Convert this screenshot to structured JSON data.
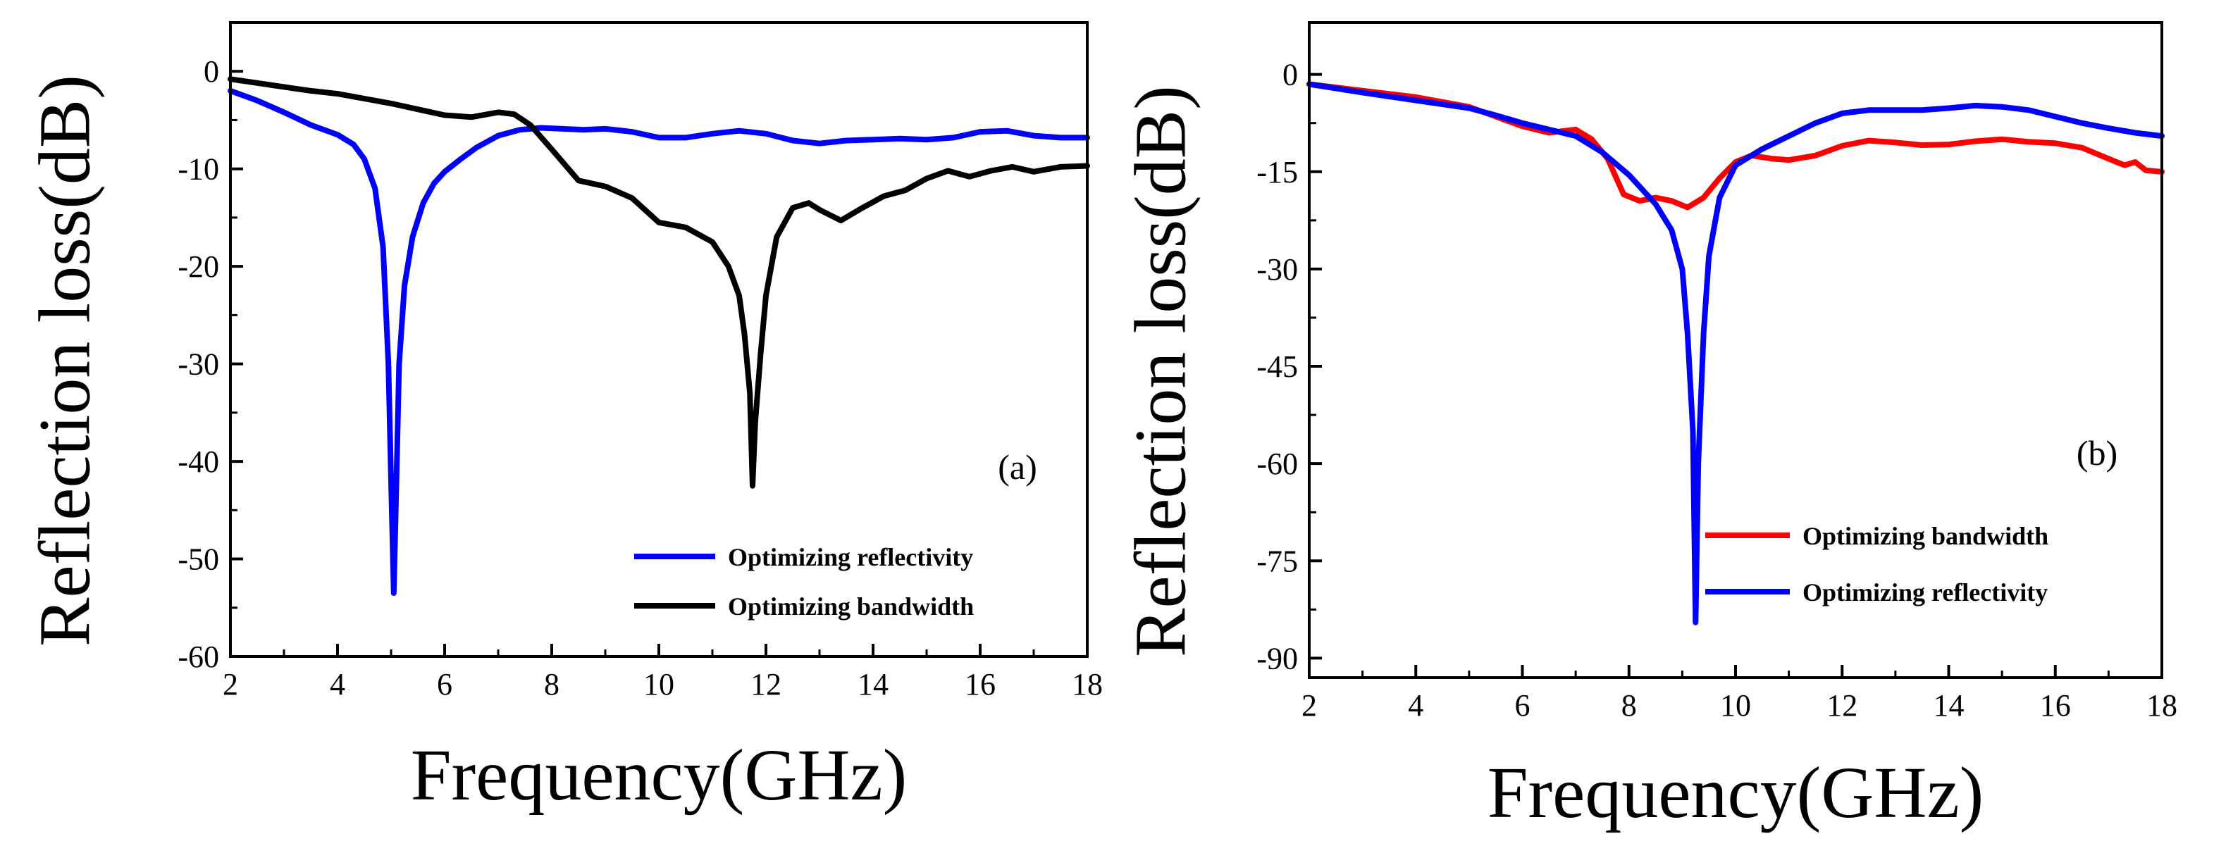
{
  "chart_data": [
    {
      "panel_label": "(a)",
      "type": "line",
      "xlabel": "Frequency(GHz)",
      "ylabel": "Reflection loss(dB)",
      "xlim": [
        2,
        18
      ],
      "ylim": [
        -60,
        5
      ],
      "xticks": [
        2,
        4,
        6,
        8,
        10,
        12,
        14,
        16,
        18
      ],
      "xtick_labels": [
        "2",
        "4",
        "6",
        "8",
        "10",
        "12",
        "14",
        "16",
        "18"
      ],
      "yticks": [
        0,
        -10,
        -20,
        -30,
        -40,
        -50,
        -60
      ],
      "ytick_labels": [
        "0",
        "-10",
        "-20",
        "-30",
        "-40",
        "-50",
        "-60"
      ],
      "legend_position": "bottom-right",
      "series": [
        {
          "name": "Optimizing reflectivity",
          "color": "#0000ff",
          "points": [
            [
              2,
              -2
            ],
            [
              2.5,
              -3
            ],
            [
              3,
              -4.2
            ],
            [
              3.5,
              -5.5
            ],
            [
              4,
              -6.5
            ],
            [
              4.3,
              -7.5
            ],
            [
              4.5,
              -9
            ],
            [
              4.7,
              -12
            ],
            [
              4.85,
              -18
            ],
            [
              4.95,
              -30
            ],
            [
              5.0,
              -42
            ],
            [
              5.05,
              -53.5
            ],
            [
              5.1,
              -42
            ],
            [
              5.15,
              -30
            ],
            [
              5.25,
              -22
            ],
            [
              5.4,
              -17
            ],
            [
              5.6,
              -13.5
            ],
            [
              5.8,
              -11.5
            ],
            [
              6.0,
              -10.3
            ],
            [
              6.3,
              -9
            ],
            [
              6.6,
              -7.8
            ],
            [
              7.0,
              -6.6
            ],
            [
              7.4,
              -6
            ],
            [
              7.8,
              -5.8
            ],
            [
              8.2,
              -5.9
            ],
            [
              8.6,
              -6.0
            ],
            [
              9.0,
              -5.9
            ],
            [
              9.5,
              -6.2
            ],
            [
              10.0,
              -6.8
            ],
            [
              10.5,
              -6.8
            ],
            [
              11.0,
              -6.4
            ],
            [
              11.5,
              -6.1
            ],
            [
              12.0,
              -6.4
            ],
            [
              12.5,
              -7.1
            ],
            [
              13.0,
              -7.4
            ],
            [
              13.5,
              -7.1
            ],
            [
              14.0,
              -7.0
            ],
            [
              14.5,
              -6.9
            ],
            [
              15.0,
              -7.0
            ],
            [
              15.5,
              -6.8
            ],
            [
              16.0,
              -6.2
            ],
            [
              16.5,
              -6.1
            ],
            [
              17.0,
              -6.6
            ],
            [
              17.5,
              -6.8
            ],
            [
              18.0,
              -6.8
            ]
          ]
        },
        {
          "name": "Optimizing bandwidth",
          "color": "#000000",
          "points": [
            [
              2,
              -0.8
            ],
            [
              2.5,
              -1.2
            ],
            [
              3,
              -1.6
            ],
            [
              3.5,
              -2.0
            ],
            [
              4,
              -2.3
            ],
            [
              4.5,
              -2.8
            ],
            [
              5.0,
              -3.3
            ],
            [
              5.5,
              -3.9
            ],
            [
              6.0,
              -4.5
            ],
            [
              6.5,
              -4.7
            ],
            [
              7.0,
              -4.2
            ],
            [
              7.3,
              -4.4
            ],
            [
              7.6,
              -5.5
            ],
            [
              8.0,
              -8.0
            ],
            [
              8.5,
              -11.2
            ],
            [
              9.0,
              -11.8
            ],
            [
              9.5,
              -13.0
            ],
            [
              10.0,
              -15.5
            ],
            [
              10.5,
              -16.0
            ],
            [
              11.0,
              -17.5
            ],
            [
              11.3,
              -20.0
            ],
            [
              11.5,
              -23.0
            ],
            [
              11.6,
              -27.0
            ],
            [
              11.7,
              -33.0
            ],
            [
              11.75,
              -42.5
            ],
            [
              11.8,
              -36.0
            ],
            [
              11.9,
              -29.0
            ],
            [
              12.0,
              -23.0
            ],
            [
              12.2,
              -17.0
            ],
            [
              12.5,
              -14.0
            ],
            [
              12.8,
              -13.5
            ],
            [
              13.0,
              -14.2
            ],
            [
              13.4,
              -15.3
            ],
            [
              13.8,
              -14.0
            ],
            [
              14.2,
              -12.8
            ],
            [
              14.6,
              -12.2
            ],
            [
              15.0,
              -11.0
            ],
            [
              15.4,
              -10.2
            ],
            [
              15.8,
              -10.8
            ],
            [
              16.2,
              -10.2
            ],
            [
              16.6,
              -9.8
            ],
            [
              17.0,
              -10.3
            ],
            [
              17.5,
              -9.8
            ],
            [
              18.0,
              -9.7
            ]
          ]
        }
      ]
    },
    {
      "panel_label": "(b)",
      "type": "line",
      "xlabel": "Frequency(GHz)",
      "ylabel": "Reflection loss(dB)",
      "xlim": [
        2,
        18
      ],
      "ylim": [
        -93,
        8
      ],
      "xticks": [
        2,
        4,
        6,
        8,
        10,
        12,
        14,
        16,
        18
      ],
      "xtick_labels": [
        "2",
        "4",
        "6",
        "8",
        "10",
        "12",
        "14",
        "16",
        "18"
      ],
      "yticks": [
        0,
        -15,
        -30,
        -45,
        -60,
        -75,
        -90
      ],
      "ytick_labels": [
        "0",
        "-15",
        "-30",
        "-45",
        "-60",
        "-75",
        "-90"
      ],
      "legend_position": "bottom-right",
      "series": [
        {
          "name": "Optimizing bandwidth",
          "color": "#ff0000",
          "points": [
            [
              2,
              -1.5
            ],
            [
              3,
              -2.5
            ],
            [
              4,
              -3.5
            ],
            [
              5,
              -5.0
            ],
            [
              5.5,
              -6.5
            ],
            [
              6,
              -8.0
            ],
            [
              6.5,
              -9.0
            ],
            [
              7,
              -8.5
            ],
            [
              7.3,
              -10.0
            ],
            [
              7.6,
              -13.0
            ],
            [
              7.9,
              -18.5
            ],
            [
              8.2,
              -19.5
            ],
            [
              8.5,
              -19.0
            ],
            [
              8.8,
              -19.5
            ],
            [
              9.1,
              -20.5
            ],
            [
              9.4,
              -19.0
            ],
            [
              9.7,
              -16.0
            ],
            [
              10.0,
              -13.5
            ],
            [
              10.3,
              -12.5
            ],
            [
              10.7,
              -13.0
            ],
            [
              11.0,
              -13.2
            ],
            [
              11.5,
              -12.5
            ],
            [
              12.0,
              -11.0
            ],
            [
              12.5,
              -10.2
            ],
            [
              13.0,
              -10.5
            ],
            [
              13.5,
              -10.9
            ],
            [
              14.0,
              -10.8
            ],
            [
              14.5,
              -10.3
            ],
            [
              15.0,
              -10.0
            ],
            [
              15.5,
              -10.4
            ],
            [
              16.0,
              -10.6
            ],
            [
              16.5,
              -11.3
            ],
            [
              17.0,
              -13.0
            ],
            [
              17.3,
              -14.0
            ],
            [
              17.5,
              -13.5
            ],
            [
              17.7,
              -14.8
            ],
            [
              18.0,
              -15.0
            ]
          ]
        },
        {
          "name": "Optimizing reflectivity",
          "color": "#0000ff",
          "points": [
            [
              2,
              -1.5
            ],
            [
              3,
              -2.8
            ],
            [
              4,
              -4.0
            ],
            [
              5,
              -5.2
            ],
            [
              5.5,
              -6.3
            ],
            [
              6,
              -7.5
            ],
            [
              6.5,
              -8.5
            ],
            [
              7,
              -9.5
            ],
            [
              7.5,
              -12.0
            ],
            [
              8.0,
              -15.5
            ],
            [
              8.5,
              -20.0
            ],
            [
              8.8,
              -24.0
            ],
            [
              9.0,
              -30.0
            ],
            [
              9.1,
              -40.0
            ],
            [
              9.2,
              -55.0
            ],
            [
              9.25,
              -84.5
            ],
            [
              9.3,
              -60.0
            ],
            [
              9.4,
              -40.0
            ],
            [
              9.5,
              -28.0
            ],
            [
              9.7,
              -19.0
            ],
            [
              10.0,
              -14.0
            ],
            [
              10.5,
              -11.5
            ],
            [
              11.0,
              -9.5
            ],
            [
              11.5,
              -7.5
            ],
            [
              12.0,
              -6.0
            ],
            [
              12.5,
              -5.5
            ],
            [
              13.0,
              -5.5
            ],
            [
              13.5,
              -5.5
            ],
            [
              14.0,
              -5.2
            ],
            [
              14.5,
              -4.8
            ],
            [
              15.0,
              -5.0
            ],
            [
              15.5,
              -5.5
            ],
            [
              16.0,
              -6.5
            ],
            [
              16.5,
              -7.5
            ],
            [
              17.0,
              -8.3
            ],
            [
              17.5,
              -9.0
            ],
            [
              18.0,
              -9.5
            ]
          ]
        }
      ]
    }
  ]
}
